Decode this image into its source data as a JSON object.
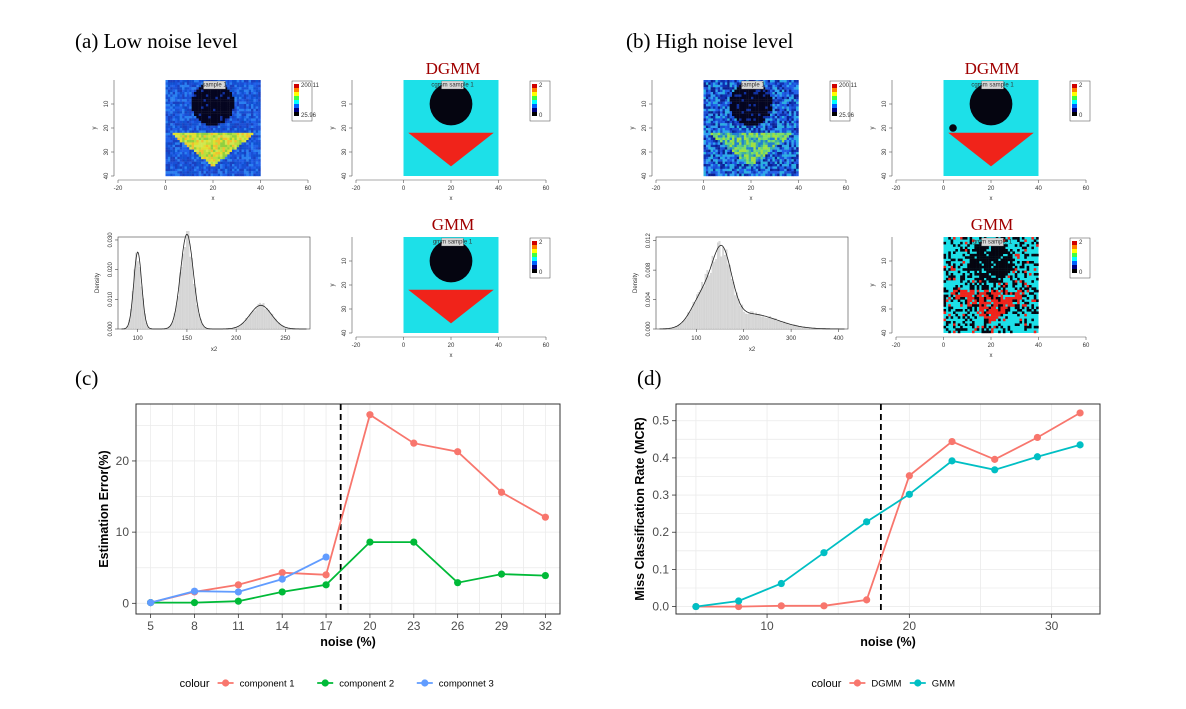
{
  "panel_labels": {
    "a": "(a) Low noise level",
    "b": "(b) High noise level",
    "c": "(c)",
    "d": "(d)"
  },
  "method_titles": {
    "a_top": "DGMM",
    "a_bottom": "GMM",
    "b_top": "DGMM",
    "b_bottom": "GMM"
  },
  "images": {
    "a_noisy": {
      "sample_label": "sample 1",
      "legend_max": "200.11",
      "legend_min": "25.96"
    },
    "a_dgmm": {
      "sample_label": "cgmm sample 1",
      "legend_max": "2",
      "legend_min": "0"
    },
    "a_gmm": {
      "sample_label": "gmm sample 1",
      "legend_max": "2",
      "legend_min": "0"
    },
    "b_noisy": {
      "sample_label": "sample 1",
      "legend_max": "200.11",
      "legend_min": "25.96"
    },
    "b_dgmm": {
      "sample_label": "cgmm sample 1",
      "legend_max": "2",
      "legend_min": "0"
    },
    "b_gmm": {
      "sample_label": "gmm sample 1",
      "legend_max": "2",
      "legend_min": "0"
    },
    "x_ticks": [
      "-20",
      "0",
      "20",
      "40",
      "60"
    ],
    "y_ticks": [
      "10",
      "20",
      "30",
      "40"
    ],
    "xlabel": "x",
    "ylabel": "y",
    "colors": {
      "background": "#1de0e8",
      "circle": "#050510",
      "triangle": "#f0231a",
      "noisy_bg": "#1a4fd6",
      "noisy_tri": "#b8e040",
      "noisy_tri_high": "#5fd084"
    }
  },
  "chart_data": [
    {
      "type": "histogram",
      "panel": "a-density",
      "xlabel": "x2",
      "ylabel": "Density",
      "x_ticks": [
        "100",
        "150",
        "200",
        "250"
      ],
      "y_ticks": [
        "0.000",
        "0.010",
        "0.020",
        "0.030"
      ],
      "xlim": [
        80,
        275
      ],
      "ylim": [
        0,
        0.031
      ],
      "density_peaks": [
        {
          "mean": 100,
          "sd": 4,
          "weight": 0.26
        },
        {
          "mean": 150,
          "sd": 6.5,
          "weight": 0.52
        },
        {
          "mean": 225,
          "sd": 11,
          "weight": 0.22
        }
      ]
    },
    {
      "type": "histogram",
      "panel": "b-density",
      "xlabel": "x2",
      "ylabel": "Density",
      "x_ticks": [
        "100",
        "200",
        "300",
        "400"
      ],
      "y_ticks": [
        "0.000",
        "0.004",
        "0.008",
        "0.012"
      ],
      "xlim": [
        15,
        420
      ],
      "ylim": [
        0,
        0.0125
      ],
      "density_peaks": [
        {
          "mean": 115,
          "sd": 25,
          "weight": 0.27
        },
        {
          "mean": 155,
          "sd": 20,
          "weight": 0.45
        },
        {
          "mean": 215,
          "sd": 55,
          "weight": 0.28
        }
      ]
    },
    {
      "type": "line",
      "panel": "c",
      "xlabel": "noise (%)",
      "ylabel": "Estimation Error(%)",
      "x": [
        5,
        8,
        11,
        14,
        17,
        20,
        23,
        26,
        29,
        32
      ],
      "x_ticks": [
        5,
        8,
        11,
        14,
        17,
        20,
        23,
        26,
        29,
        32
      ],
      "y_ticks": [
        0,
        10,
        20
      ],
      "xlim": [
        4,
        33
      ],
      "ylim": [
        -1.5,
        28
      ],
      "vline": 18,
      "legend_title": "colour",
      "legend_position": "bottom",
      "series": [
        {
          "name": "component 1",
          "color": "#f8766d",
          "x": [
            5,
            8,
            11,
            14,
            17,
            20,
            23,
            26,
            29,
            32
          ],
          "values": [
            0.1,
            1.6,
            2.6,
            4.3,
            4.0,
            26.5,
            22.5,
            21.3,
            15.6,
            12.1
          ]
        },
        {
          "name": "component 2",
          "color": "#00ba38",
          "x": [
            5,
            8,
            11,
            14,
            17,
            20,
            23,
            26,
            29,
            32
          ],
          "values": [
            0.1,
            0.1,
            0.3,
            1.6,
            2.6,
            8.6,
            8.6,
            2.9,
            4.1,
            3.9
          ]
        },
        {
          "name": "componnet 3",
          "color": "#619cff",
          "x": [
            5,
            8,
            11,
            14,
            17
          ],
          "values": [
            0.1,
            1.7,
            1.6,
            3.4,
            6.5
          ]
        }
      ]
    },
    {
      "type": "line",
      "panel": "d",
      "xlabel": "noise (%)",
      "ylabel": "Miss Classification Rate (MCR)",
      "x": [
        5,
        8,
        11,
        14,
        17,
        20,
        23,
        26,
        29,
        32
      ],
      "x_ticks": [
        10,
        20,
        30
      ],
      "y_ticks": [
        "0.0",
        "0.1",
        "0.2",
        "0.3",
        "0.4",
        "0.5"
      ],
      "xlim": [
        3.6,
        33.4
      ],
      "ylim": [
        -0.02,
        0.545
      ],
      "vline": 18,
      "legend_title": "colour",
      "legend_position": "bottom",
      "series": [
        {
          "name": "DGMM",
          "color": "#f8766d",
          "x": [
            5,
            8,
            11,
            14,
            17,
            20,
            23,
            26,
            29,
            32
          ],
          "values": [
            0.0,
            0.0,
            0.002,
            0.002,
            0.018,
            0.352,
            0.444,
            0.396,
            0.455,
            0.521
          ]
        },
        {
          "name": "GMM",
          "color": "#00bfc4",
          "x": [
            5,
            8,
            11,
            14,
            17,
            20,
            23,
            26,
            29,
            32
          ],
          "values": [
            0.0,
            0.015,
            0.062,
            0.145,
            0.228,
            0.302,
            0.392,
            0.368,
            0.403,
            0.435
          ]
        }
      ]
    }
  ]
}
